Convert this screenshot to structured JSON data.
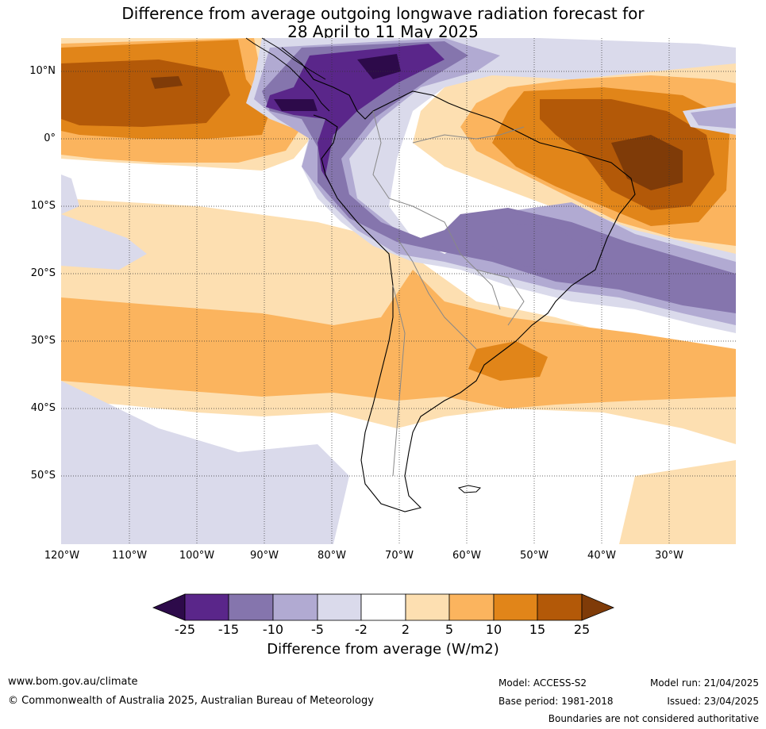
{
  "title": {
    "line1": "Difference from average outgoing longwave radiation forecast for",
    "line2": "28 April to 11 May 2025"
  },
  "map": {
    "lat_labels": [
      "10°N",
      "0°",
      "10°S",
      "20°S",
      "30°S",
      "40°S",
      "50°S"
    ],
    "lon_labels": [
      "120°W",
      "110°W",
      "100°W",
      "90°W",
      "80°W",
      "70°W",
      "60°W",
      "50°W",
      "40°W",
      "30°W"
    ]
  },
  "colorbar": {
    "ticks": [
      "-25",
      "-15",
      "-10",
      "-5",
      "-2",
      "2",
      "5",
      "10",
      "15",
      "25"
    ],
    "label": "Difference from average (W/m2)",
    "colors": {
      "lt_-25": "#2d0a4a",
      "-25_-15": "#5a268a",
      "-15_-10": "#8575ad",
      "-10_-5": "#b1aad2",
      "-5_-2": "#dadaeb",
      "-2_2": "#ffffff",
      "2_5": "#fddfb1",
      "5_10": "#fbb45e",
      "10_15": "#e18519",
      "15_25": "#b35908",
      "gt_25": "#7f3b08"
    }
  },
  "footer": {
    "website": "www.bom.gov.au/climate",
    "copyright": "© Commonwealth of Australia 2025, Australian Bureau of Meteorology",
    "model": "Model: ACCESS-S2",
    "base_period": "Base period: 1981-2018",
    "model_run": "Model run: 21/04/2025",
    "issued": "Issued: 23/04/2025",
    "disclaimer": "Boundaries are not considered authoritative"
  }
}
